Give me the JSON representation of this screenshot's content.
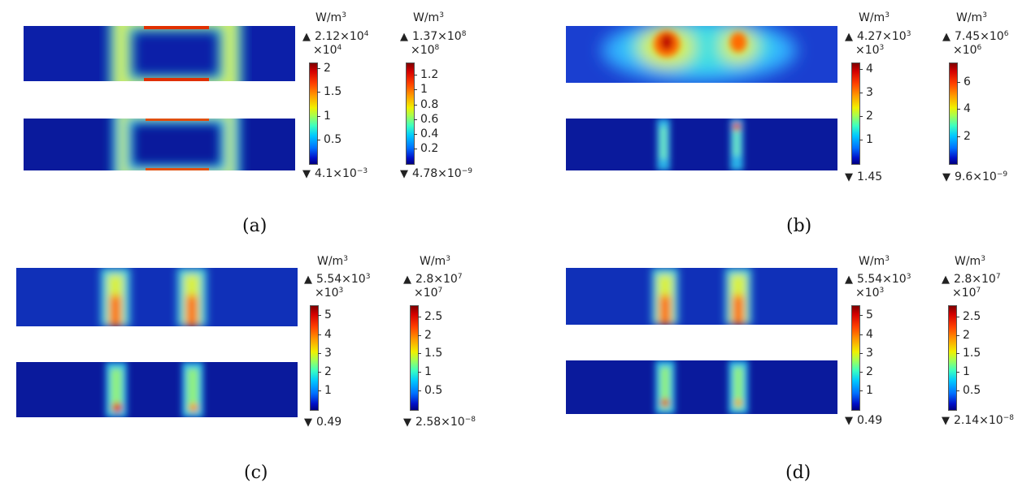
{
  "panels": [
    {
      "caption": "(a)",
      "legend_unit": "W/m",
      "unit_exp": "3",
      "cb1": {
        "max_base": "2.12×10",
        "max_exp": "4",
        "mult_base": "×10",
        "mult_exp": "4",
        "ticks": [
          "2",
          "1.5",
          "1",
          "0.5"
        ],
        "tick_values": [
          2,
          1.5,
          1,
          0.5
        ],
        "scale_max": 2.12,
        "min_base": "4.1×10",
        "min_exp": "−3"
      },
      "cb2": {
        "max_base": "1.37×10",
        "max_exp": "8",
        "mult_base": "×10",
        "mult_exp": "8",
        "ticks": [
          "1.2",
          "1",
          "0.8",
          "0.6",
          "0.4",
          "0.2"
        ],
        "tick_values": [
          1.2,
          1,
          0.8,
          0.6,
          0.4,
          0.2
        ],
        "scale_max": 1.37,
        "min_base": "4.78×10",
        "min_exp": "−9"
      }
    },
    {
      "caption": "(b)",
      "legend_unit": "W/m",
      "unit_exp": "3",
      "cb1": {
        "max_base": "4.27×10",
        "max_exp": "3",
        "mult_base": "×10",
        "mult_exp": "3",
        "ticks": [
          "4",
          "3",
          "2",
          "1"
        ],
        "tick_values": [
          4,
          3,
          2,
          1
        ],
        "scale_max": 4.27,
        "min_base": "1.45",
        "min_exp": ""
      },
      "cb2": {
        "max_base": "7.45×10",
        "max_exp": "6",
        "mult_base": "×10",
        "mult_exp": "6",
        "ticks": [
          "6",
          "4",
          "2"
        ],
        "tick_values": [
          6,
          4,
          2
        ],
        "scale_max": 7.45,
        "min_base": "9.6×10",
        "min_exp": "−9"
      }
    },
    {
      "caption": "(c)",
      "legend_unit": "W/m",
      "unit_exp": "3",
      "cb1": {
        "max_base": "5.54×10",
        "max_exp": "3",
        "mult_base": "×10",
        "mult_exp": "3",
        "ticks": [
          "5",
          "4",
          "3",
          "2",
          "1"
        ],
        "tick_values": [
          5,
          4,
          3,
          2,
          1
        ],
        "scale_max": 5.54,
        "min_base": "0.49",
        "min_exp": ""
      },
      "cb2": {
        "max_base": "2.8×10",
        "max_exp": "7",
        "mult_base": "×10",
        "mult_exp": "7",
        "ticks": [
          "2.5",
          "2",
          "1.5",
          "1",
          "0.5"
        ],
        "tick_values": [
          2.5,
          2,
          1.5,
          1,
          0.5
        ],
        "scale_max": 2.8,
        "min_base": "2.58×10",
        "min_exp": "−8"
      }
    },
    {
      "caption": "(d)",
      "legend_unit": "W/m",
      "unit_exp": "3",
      "cb1": {
        "max_base": "5.54×10",
        "max_exp": "3",
        "mult_base": "×10",
        "mult_exp": "3",
        "ticks": [
          "5",
          "4",
          "3",
          "2",
          "1"
        ],
        "tick_values": [
          5,
          4,
          3,
          2,
          1
        ],
        "scale_max": 5.54,
        "min_base": "0.49",
        "min_exp": ""
      },
      "cb2": {
        "max_base": "2.8×10",
        "max_exp": "7",
        "mult_base": "×10",
        "mult_exp": "7",
        "ticks": [
          "2.5",
          "2",
          "1.5",
          "1",
          "0.5"
        ],
        "tick_values": [
          2.5,
          2,
          1.5,
          1,
          0.5
        ],
        "scale_max": 2.8,
        "min_base": "2.14×10",
        "min_exp": "−8"
      }
    }
  ]
}
